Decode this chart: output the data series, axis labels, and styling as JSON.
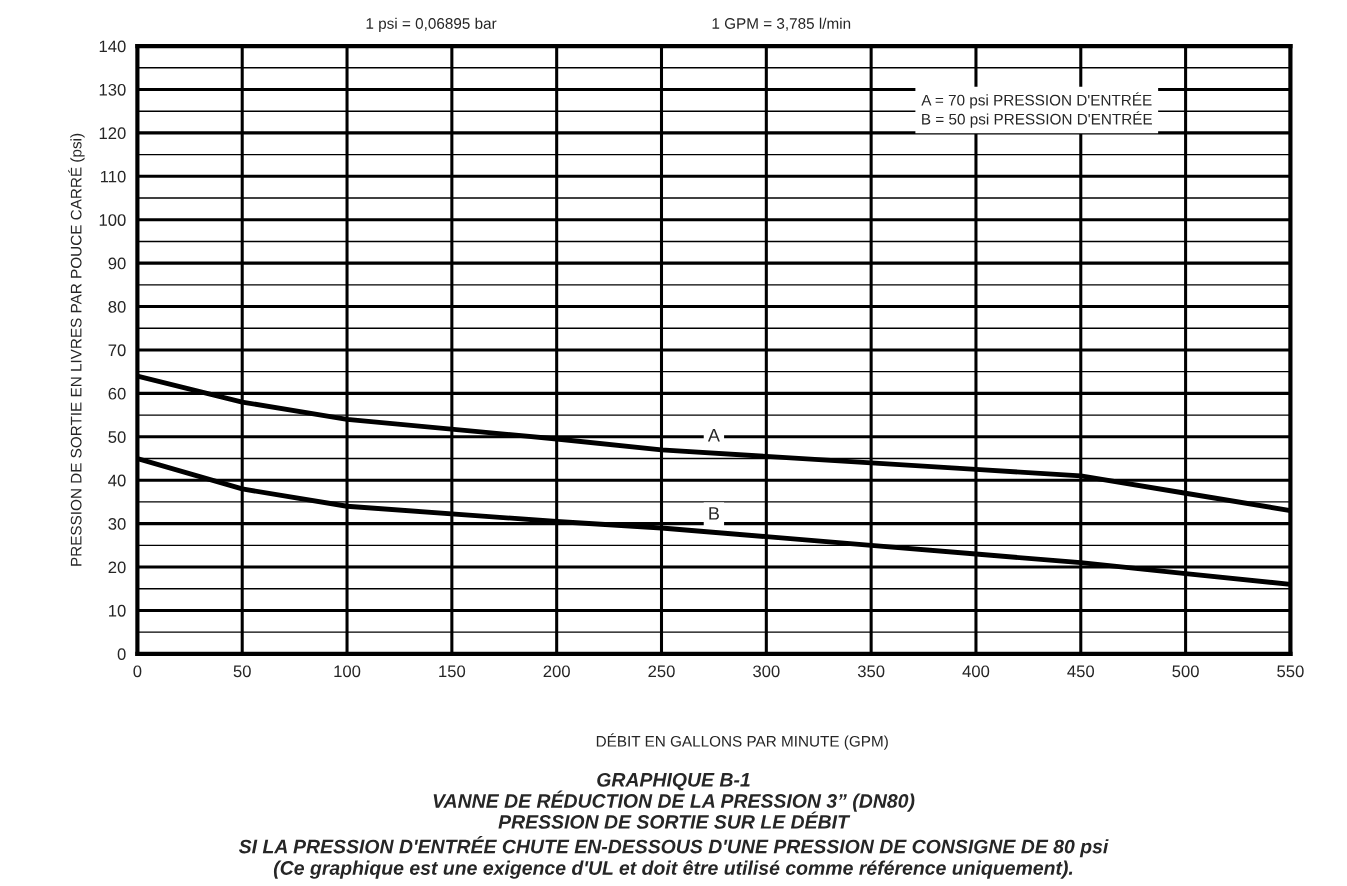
{
  "chart_data": {
    "type": "line",
    "title": "GRAPHIQUE B-1",
    "subtitle": "VANNE DE RÉDUCTION DE LA PRESSION 3” (DN80)\nPRESSION DE SORTIE SUR LE DÉBIT\nSI LA PRESSION D'ENTRÉE CHUTE EN-DESSOUS D'UNE PRESSION DE CONSIGNE DE 80 psi\n(Ce graphique est une exigence d'UL et doit être utilisé comme référence uniquement).",
    "xlabel": "DÉBIT EN GALLONS PAR MINUTE (GPM)",
    "ylabel": "PRESSION DE SORTIE EN LIVRES PAR POUCE CARRÉ (psi)",
    "annotations": [
      "1 psi = 0,06895 bar",
      "1 GPM = 3,785 l/min",
      "A = 70 psi PRESSION D'ENTRÉE\nB = 50 psi PRESSION D'ENTRÉE"
    ],
    "x": [
      0,
      50,
      100,
      200,
      250,
      300,
      350,
      400,
      450,
      500,
      550
    ],
    "series": [
      {
        "name": "A",
        "color": "#000000",
        "values": [
          64,
          58,
          54,
          49.5,
          47,
          45.5,
          44,
          42.5,
          41,
          37,
          33
        ]
      },
      {
        "name": "B",
        "color": "#000000",
        "values": [
          45,
          38,
          34,
          30.5,
          29,
          27,
          25,
          23,
          21,
          18.5,
          16
        ]
      }
    ],
    "xlim": [
      0,
      550
    ],
    "xticks": [
      0,
      50,
      100,
      150,
      200,
      250,
      300,
      350,
      400,
      450,
      500,
      550
    ],
    "ylim": [
      0,
      140
    ],
    "yticks": [
      0,
      10,
      20,
      30,
      40,
      50,
      60,
      70,
      80,
      90,
      100,
      110,
      120,
      130,
      140
    ],
    "grid": true,
    "legend": false,
    "marker": "none",
    "line_style": "solid"
  }
}
